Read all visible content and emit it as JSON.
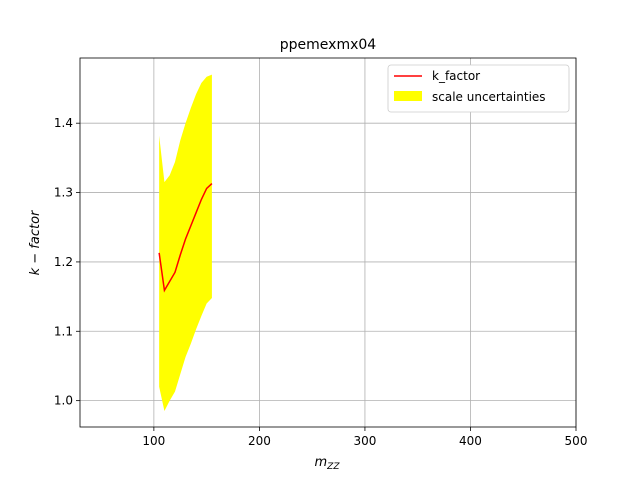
{
  "chart_data": {
    "type": "line",
    "title": "ppemexmx04",
    "xlabel": "m",
    "xlabel_sub": "ZZ",
    "ylabel": "k − factor",
    "xlim": [
      30,
      500
    ],
    "ylim": [
      0.962,
      1.494
    ],
    "xticks": [
      100,
      200,
      300,
      400,
      500
    ],
    "xtick_labels": [
      "100",
      "200",
      "300",
      "400",
      "500"
    ],
    "yticks": [
      1.0,
      1.1,
      1.2,
      1.3,
      1.4
    ],
    "ytick_labels": [
      "1.0",
      "1.1",
      "1.2",
      "1.3",
      "1.4"
    ],
    "grid": true,
    "legend_position": "top-right",
    "series": [
      {
        "name": "k_factor",
        "kind": "line",
        "color": "#ff0000",
        "x": [
          105,
          110,
          115,
          120,
          125,
          130,
          135,
          140,
          145,
          150,
          155
        ],
        "y": [
          1.213,
          1.159,
          1.172,
          1.185,
          1.21,
          1.233,
          1.252,
          1.271,
          1.29,
          1.306,
          1.313
        ]
      },
      {
        "name": "scale uncertainties",
        "kind": "band",
        "color": "#ffff00",
        "x": [
          105,
          110,
          115,
          120,
          125,
          130,
          135,
          140,
          145,
          150,
          155
        ],
        "upper": [
          1.382,
          1.315,
          1.325,
          1.344,
          1.375,
          1.4,
          1.422,
          1.442,
          1.458,
          1.467,
          1.47
        ],
        "lower": [
          1.02,
          0.985,
          1.0,
          1.013,
          1.038,
          1.063,
          1.082,
          1.103,
          1.122,
          1.14,
          1.148
        ]
      }
    ]
  }
}
